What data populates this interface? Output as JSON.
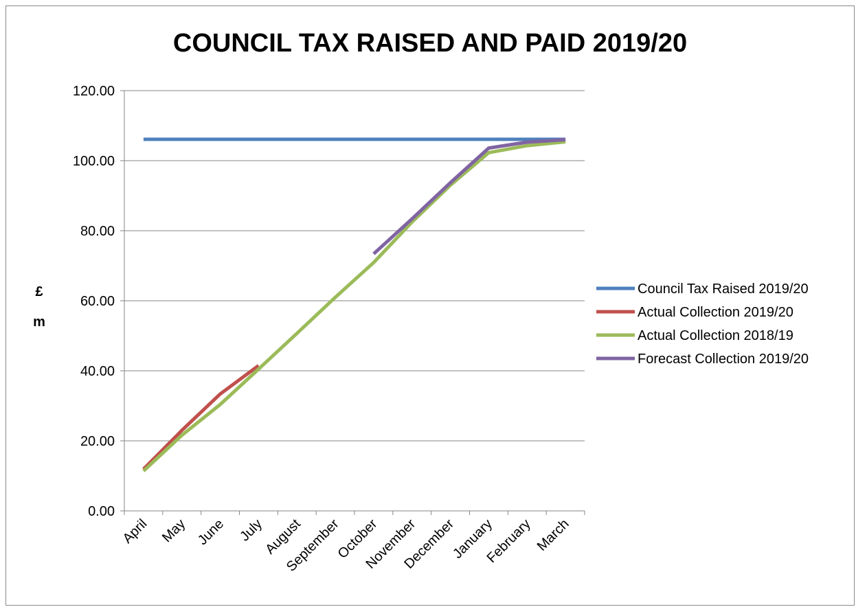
{
  "chart_data": {
    "type": "line",
    "title": "COUNCIL TAX RAISED AND PAID 2019/20",
    "ylabel_lines": [
      "£",
      "m"
    ],
    "xlabel": "",
    "categories": [
      "April",
      "May",
      "June",
      "July",
      "August",
      "September",
      "October",
      "November",
      "December",
      "January",
      "February",
      "March"
    ],
    "ylim": [
      0,
      120
    ],
    "yticks": [
      "0.00",
      "20.00",
      "40.00",
      "60.00",
      "80.00",
      "100.00",
      "120.00"
    ],
    "grid": true,
    "legend_position": "right",
    "series": [
      {
        "name": "Council Tax Raised 2019/20",
        "color": "#4f81bd",
        "values": [
          106.1,
          106.1,
          106.1,
          106.1,
          106.1,
          106.1,
          106.1,
          106.1,
          106.1,
          106.1,
          106.1,
          106.1
        ]
      },
      {
        "name": "Actual Collection 2019/20",
        "color": "#c0504d",
        "values": [
          11.9,
          23.0,
          33.4,
          41.5,
          null,
          null,
          null,
          null,
          null,
          null,
          null,
          null
        ]
      },
      {
        "name": "Actual Collection 2018/19",
        "color": "#9bbb59",
        "values": [
          11.4,
          21.6,
          30.4,
          40.5,
          50.7,
          61.0,
          70.9,
          82.5,
          93.0,
          102.3,
          104.3,
          105.4
        ]
      },
      {
        "name": "Forecast Collection 2019/20",
        "color": "#8064a2",
        "values": [
          null,
          null,
          null,
          null,
          null,
          null,
          73.4,
          83.4,
          93.7,
          103.6,
          105.3,
          106.0
        ]
      }
    ]
  }
}
